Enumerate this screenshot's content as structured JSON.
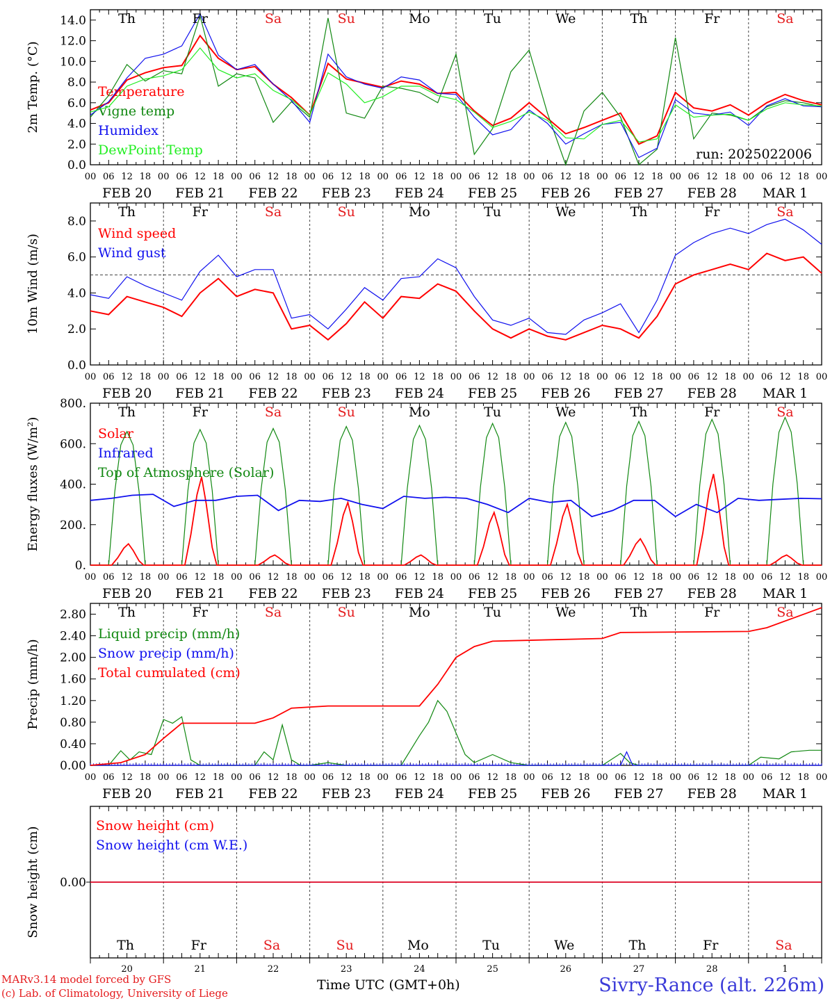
{
  "run_label": "run: 2025022006",
  "colors": {
    "red": "#ff0000",
    "green": "#118811",
    "blue": "#1010ee",
    "lime": "#22ee22",
    "grid": "#444444"
  },
  "days": {
    "weekday_labels": [
      "Th",
      "Fr",
      "Sa",
      "Su",
      "Mo",
      "Tu",
      "We",
      "Th",
      "Fr",
      "Sa"
    ],
    "weekend_flags": [
      false,
      false,
      true,
      true,
      false,
      false,
      false,
      false,
      false,
      true
    ],
    "date_labels": [
      "FEB 20",
      "FEB 21",
      "FEB 22",
      "FEB 23",
      "FEB 24",
      "FEB 25",
      "FEB 26",
      "FEB 27",
      "FEB 28",
      "MAR  1"
    ],
    "day_numbers": [
      "20",
      "21",
      "22",
      "23",
      "24",
      "25",
      "26",
      "27",
      "28",
      "1"
    ],
    "hour_ticks": [
      "00",
      "06",
      "12",
      "18"
    ],
    "end_tick": "00"
  },
  "footer": {
    "model": "MARv3.14 model forced by GFS",
    "credit": "(c) Lab. of Climatology, University of Liege",
    "time_axis": "Time UTC (GMT+0h)",
    "station": "Sivry-Rance (alt. 226m)"
  },
  "chart_data": [
    {
      "type": "line",
      "ylabel": "2m Temp. (°C)",
      "ylim": [
        0,
        15
      ],
      "yticks": [
        "0.0",
        "2.0",
        "4.0",
        "6.0",
        "8.0",
        "10.0",
        "12.0",
        "14.0"
      ],
      "x_hours": [
        0,
        6,
        12,
        18,
        24,
        30,
        36,
        42,
        48,
        54,
        60,
        66,
        72,
        78,
        84,
        90,
        96,
        102,
        108,
        114,
        120,
        126,
        132,
        138,
        144,
        150,
        156,
        162,
        168,
        174,
        180,
        186,
        192,
        198,
        204,
        210,
        216,
        222,
        228,
        234,
        240
      ],
      "series": [
        {
          "name": "Temperature",
          "color": "#ff0000",
          "values": [
            5.3,
            6.0,
            8.2,
            8.9,
            9.4,
            9.6,
            12.5,
            10.3,
            9.2,
            9.5,
            7.8,
            6.5,
            4.8,
            9.8,
            8.3,
            7.9,
            7.5,
            8.1,
            7.8,
            6.9,
            7.0,
            5.2,
            3.8,
            4.5,
            6.0,
            4.5,
            3.0,
            3.6,
            4.3,
            5.0,
            2.0,
            2.8,
            7.0,
            5.5,
            5.2,
            5.8,
            4.8,
            6.0,
            6.8,
            6.2,
            5.8
          ]
        },
        {
          "name": "Vigne temp",
          "color": "#118811",
          "values": [
            4.6,
            6.7,
            9.7,
            8.1,
            9.1,
            8.8,
            14.4,
            7.6,
            8.8,
            8.4,
            4.1,
            6.1,
            4.6,
            14.2,
            5.0,
            4.5,
            7.6,
            7.4,
            7.0,
            6.0,
            10.7,
            1.0,
            3.5,
            9.0,
            11.1,
            5.0,
            0.0,
            5.2,
            7.0,
            4.6,
            0.0,
            1.5,
            12.3,
            2.5,
            5.0,
            4.8,
            4.3,
            5.6,
            6.2,
            6.0,
            5.6
          ]
        },
        {
          "name": "Humidex",
          "color": "#1010ee",
          "values": [
            4.8,
            6.1,
            8.4,
            10.3,
            10.7,
            11.5,
            14.6,
            10.6,
            9.2,
            9.7,
            7.8,
            6.2,
            4.1,
            10.7,
            8.5,
            7.8,
            7.4,
            8.5,
            8.2,
            6.9,
            6.8,
            4.6,
            2.9,
            3.4,
            5.3,
            4.0,
            2.0,
            3.0,
            3.9,
            4.1,
            0.7,
            1.6,
            6.3,
            5.0,
            4.8,
            5.1,
            3.8,
            5.7,
            6.4,
            5.7,
            5.6
          ]
        },
        {
          "name": "DewPoint Temp",
          "color": "#22ee22",
          "values": [
            5.1,
            5.6,
            7.6,
            8.3,
            8.6,
            9.2,
            11.3,
            9.2,
            8.4,
            8.8,
            7.2,
            6.3,
            4.8,
            8.9,
            7.8,
            6.0,
            6.6,
            7.6,
            7.6,
            6.7,
            6.3,
            5.1,
            3.6,
            4.2,
            5.1,
            4.3,
            2.6,
            2.5,
            3.9,
            4.3,
            2.2,
            2.5,
            5.8,
            4.6,
            4.8,
            4.9,
            4.3,
            5.4,
            6.0,
            5.8,
            5.7
          ]
        }
      ]
    },
    {
      "type": "line",
      "ylabel": "10m Wind (m/s)",
      "ylim": [
        0,
        9
      ],
      "yticks": [
        "0.0",
        "2.0",
        "4.0",
        "6.0",
        "8.0"
      ],
      "reference_line": 5.0,
      "x_hours": [
        0,
        6,
        12,
        18,
        24,
        30,
        36,
        42,
        48,
        54,
        60,
        66,
        72,
        78,
        84,
        90,
        96,
        102,
        108,
        114,
        120,
        126,
        132,
        138,
        144,
        150,
        156,
        162,
        168,
        174,
        180,
        186,
        192,
        198,
        204,
        210,
        216,
        222,
        228,
        234,
        240
      ],
      "series": [
        {
          "name": "Wind speed",
          "color": "#ff0000",
          "values": [
            3.0,
            2.8,
            3.8,
            3.5,
            3.2,
            2.7,
            4.0,
            4.8,
            3.8,
            4.2,
            4.0,
            2.0,
            2.2,
            1.4,
            2.3,
            3.5,
            2.6,
            3.8,
            3.7,
            4.5,
            4.1,
            3.0,
            2.0,
            1.5,
            2.0,
            1.6,
            1.4,
            1.8,
            2.2,
            2.0,
            1.5,
            2.7,
            4.5,
            5.0,
            5.3,
            5.6,
            5.3,
            6.2,
            5.8,
            6.0,
            5.1
          ]
        },
        {
          "name": "Wind gust",
          "color": "#1010ee",
          "values": [
            3.9,
            3.7,
            4.9,
            4.4,
            4.0,
            3.6,
            5.2,
            6.1,
            4.9,
            5.3,
            5.3,
            2.6,
            2.8,
            2.0,
            3.1,
            4.3,
            3.6,
            4.8,
            4.9,
            5.9,
            5.4,
            3.8,
            2.5,
            2.2,
            2.6,
            1.8,
            1.7,
            2.5,
            2.9,
            3.4,
            1.8,
            3.6,
            6.1,
            6.8,
            7.3,
            7.6,
            7.3,
            7.8,
            8.1,
            7.5,
            6.7
          ]
        }
      ]
    },
    {
      "type": "line",
      "ylabel": "Energy fluxes (W/m²)",
      "ylim": [
        0,
        800
      ],
      "yticks": [
        "0.",
        "200.",
        "400.",
        "600.",
        "800."
      ],
      "series": [
        {
          "name": "Solar",
          "color": "#ff0000",
          "daily_peaks": [
            105,
            435,
            50,
            310,
            50,
            260,
            300,
            130,
            450,
            50
          ]
        },
        {
          "name": "Infrared",
          "color": "#1010ee",
          "values": [
            320,
            330,
            345,
            350,
            290,
            320,
            320,
            340,
            345,
            270,
            320,
            315,
            330,
            300,
            280,
            340,
            330,
            335,
            330,
            300,
            260,
            330,
            310,
            320,
            240,
            270,
            320,
            320,
            240,
            300,
            260,
            330,
            320,
            325,
            330,
            328
          ]
        },
        {
          "name": "Top of Atmosphere (Solar)",
          "color": "#118811",
          "daily_peaks": [
            660,
            670,
            675,
            685,
            690,
            700,
            705,
            710,
            720,
            730
          ]
        }
      ]
    },
    {
      "type": "line",
      "ylabel": "Precip (mm/h)",
      "ylim": [
        0,
        3.0
      ],
      "yticks": [
        "0.00",
        "0.40",
        "0.80",
        "1.20",
        "1.60",
        "2.00",
        "2.40",
        "2.80"
      ],
      "series": [
        {
          "name": "Liquid precip (mm/h)",
          "color": "#118811",
          "points": [
            [
              0,
              0
            ],
            [
              6,
              0.0
            ],
            [
              10,
              0.27
            ],
            [
              13,
              0.1
            ],
            [
              16,
              0.25
            ],
            [
              20,
              0.2
            ],
            [
              24,
              0.85
            ],
            [
              27,
              0.78
            ],
            [
              30,
              0.9
            ],
            [
              33,
              0.1
            ],
            [
              36,
              0
            ],
            [
              54,
              0
            ],
            [
              57,
              0.25
            ],
            [
              60,
              0.1
            ],
            [
              63,
              0.75
            ],
            [
              66,
              0.1
            ],
            [
              69,
              0
            ],
            [
              72,
              0.0
            ],
            [
              78,
              0.05
            ],
            [
              84,
              0
            ],
            [
              96,
              0
            ],
            [
              102,
              0.0
            ],
            [
              108,
              0.55
            ],
            [
              111,
              0.8
            ],
            [
              114,
              1.2
            ],
            [
              117,
              1.0
            ],
            [
              120,
              0.6
            ],
            [
              123,
              0.2
            ],
            [
              126,
              0.05
            ],
            [
              132,
              0.2
            ],
            [
              138,
              0.05
            ],
            [
              144,
              0
            ],
            [
              168,
              0
            ],
            [
              174,
              0.22
            ],
            [
              177,
              0.05
            ],
            [
              180,
              0
            ],
            [
              216,
              0
            ],
            [
              220,
              0.15
            ],
            [
              226,
              0.12
            ],
            [
              230,
              0.25
            ],
            [
              236,
              0.28
            ],
            [
              240,
              0.28
            ]
          ]
        },
        {
          "name": "Snow precip (mm/h)",
          "color": "#1010ee",
          "points": [
            [
              0,
              0
            ],
            [
              174,
              0
            ],
            [
              176,
              0.25
            ],
            [
              178,
              0
            ],
            [
              240,
              0
            ]
          ]
        },
        {
          "name": "Total cumulated (cm)",
          "color": "#ff0000",
          "points": [
            [
              0,
              0
            ],
            [
              10,
              0.05
            ],
            [
              18,
              0.2
            ],
            [
              24,
              0.5
            ],
            [
              30,
              0.78
            ],
            [
              36,
              0.78
            ],
            [
              54,
              0.78
            ],
            [
              60,
              0.88
            ],
            [
              66,
              1.06
            ],
            [
              78,
              1.1
            ],
            [
              96,
              1.1
            ],
            [
              108,
              1.1
            ],
            [
              114,
              1.5
            ],
            [
              120,
              2.0
            ],
            [
              126,
              2.2
            ],
            [
              132,
              2.3
            ],
            [
              168,
              2.35
            ],
            [
              174,
              2.46
            ],
            [
              216,
              2.48
            ],
            [
              222,
              2.55
            ],
            [
              240,
              2.92
            ]
          ]
        }
      ]
    },
    {
      "type": "line",
      "ylabel": "Snow height (cm)",
      "ylim": [
        -1,
        1
      ],
      "yticks": [
        "0.00"
      ],
      "series": [
        {
          "name": "Snow height (cm)",
          "color": "#ff0000",
          "values": [
            0,
            0
          ]
        },
        {
          "name": "Snow height (cm W.E.)",
          "color": "#1010ee",
          "values": [
            0,
            0
          ]
        }
      ]
    }
  ]
}
